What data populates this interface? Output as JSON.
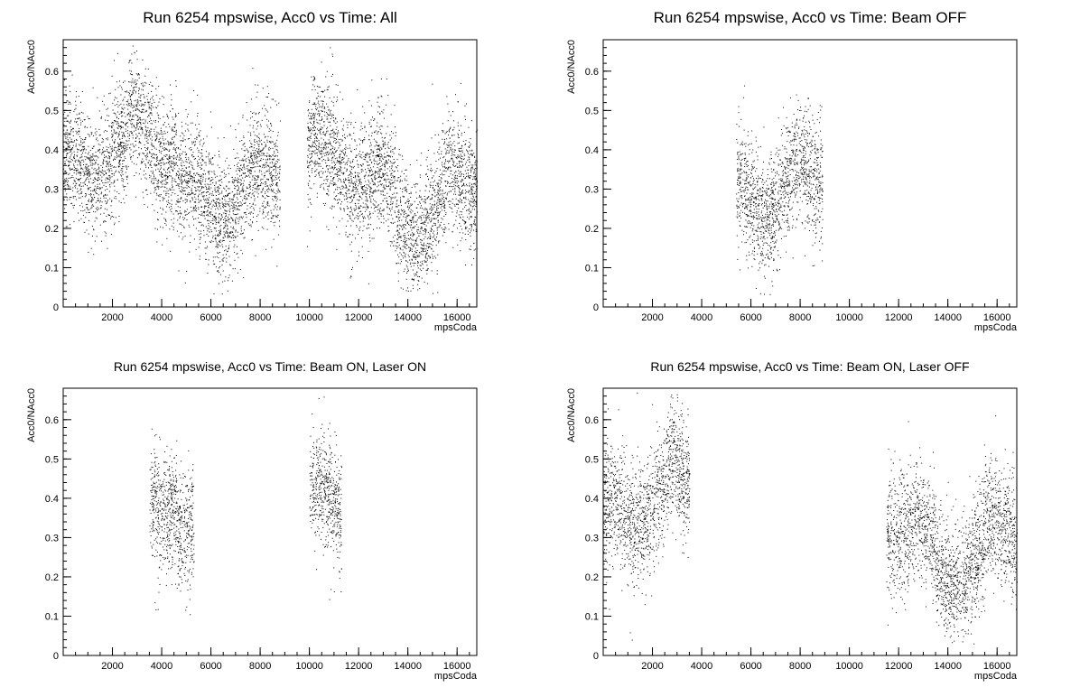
{
  "chart_data": [
    {
      "type": "scatter",
      "title": "Run 6254 mpswise, Acc0 vs Time: All",
      "xlabel": "mpsCoda",
      "ylabel": "Acc0/NAcc0",
      "xlim": [
        0,
        16800
      ],
      "ylim": [
        0,
        0.68
      ],
      "xticks": [
        2000,
        4000,
        6000,
        8000,
        10000,
        12000,
        14000,
        16000
      ],
      "yticks": [
        0,
        0.1,
        0.2,
        0.3,
        0.4,
        0.5,
        0.6
      ],
      "grid": false,
      "legend": "none",
      "series": [
        {
          "x_ranges": [
            [
              0,
              8800
            ],
            [
              9900,
              16800
            ]
          ]
        }
      ]
    },
    {
      "type": "scatter",
      "title": "Run 6254 mpswise, Acc0 vs Time: Beam OFF",
      "xlabel": "mpsCoda",
      "ylabel": "Acc0/NAcc0",
      "xlim": [
        0,
        16800
      ],
      "ylim": [
        0,
        0.68
      ],
      "xticks": [
        2000,
        4000,
        6000,
        8000,
        10000,
        12000,
        14000,
        16000
      ],
      "yticks": [
        0,
        0.1,
        0.2,
        0.3,
        0.4,
        0.5,
        0.6
      ],
      "grid": false,
      "legend": "none",
      "series": [
        {
          "x_ranges": [
            [
              5400,
              8900
            ]
          ]
        }
      ]
    },
    {
      "type": "scatter",
      "title": "Run 6254 mpswise, Acc0 vs Time: Beam ON, Laser ON",
      "xlabel": "mpsCoda",
      "ylabel": "Acc0/NAcc0",
      "xlim": [
        0,
        16800
      ],
      "ylim": [
        0,
        0.68
      ],
      "xticks": [
        2000,
        4000,
        6000,
        8000,
        10000,
        12000,
        14000,
        16000
      ],
      "yticks": [
        0,
        0.1,
        0.2,
        0.3,
        0.4,
        0.5,
        0.6
      ],
      "grid": false,
      "legend": "none",
      "series": [
        {
          "x_ranges": [
            [
              3500,
              5300
            ],
            [
              10000,
              11300
            ]
          ]
        }
      ]
    },
    {
      "type": "scatter",
      "title": "Run 6254 mpswise, Acc0 vs Time: Beam ON, Laser OFF",
      "xlabel": "mpsCoda",
      "ylabel": "Acc0/NAcc0",
      "xlim": [
        0,
        16800
      ],
      "ylim": [
        0,
        0.68
      ],
      "xticks": [
        2000,
        4000,
        6000,
        8000,
        10000,
        12000,
        14000,
        16000
      ],
      "yticks": [
        0,
        0.1,
        0.2,
        0.3,
        0.4,
        0.5,
        0.6
      ],
      "grid": false,
      "legend": "none",
      "series": [
        {
          "x_ranges": [
            [
              0,
              3500
            ],
            [
              11500,
              16800
            ]
          ]
        }
      ]
    }
  ]
}
